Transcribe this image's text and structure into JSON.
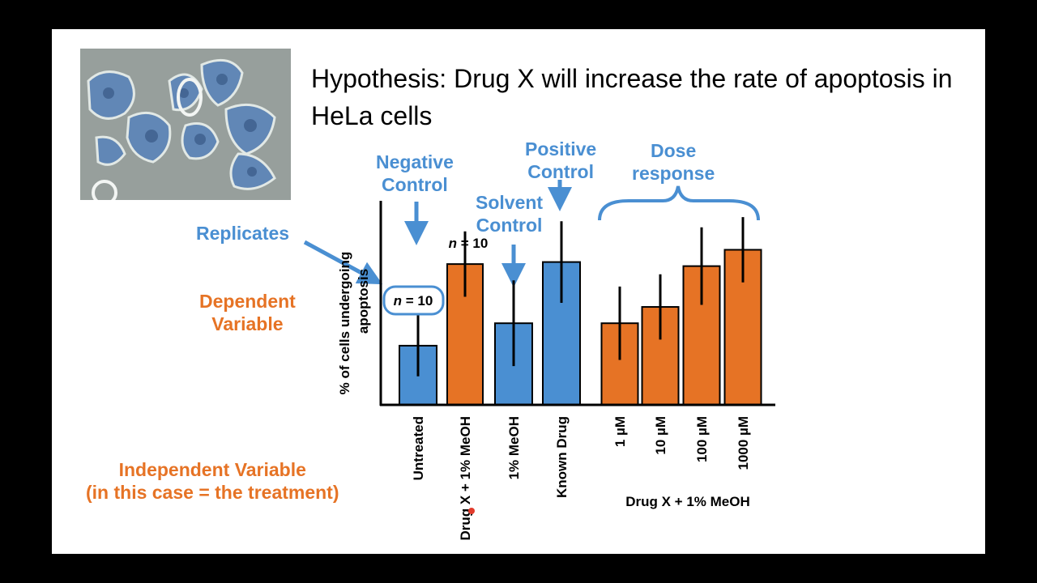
{
  "slide": {
    "hypothesis": "Hypothesis: Drug X will increase the rate of apoptosis in HeLa cells",
    "photo_description_icon": "hela-cells-micrograph"
  },
  "annotations": {
    "negative_control_1": "Negative",
    "negative_control_2": "Control",
    "positive_control_1": "Positive",
    "positive_control_2": "Control",
    "solvent_control_1": "Solvent",
    "solvent_control_2": "Control",
    "dose_response_1": "Dose",
    "dose_response_2": "response",
    "replicates": "Replicates",
    "dependent_1": "Dependent",
    "dependent_2": "Variable",
    "independent_1": "Independent Variable",
    "independent_2": "(in this case = the treatment)"
  },
  "colors": {
    "blue": "#4a8fd2",
    "orange": "#e67325",
    "annotation_blue": "#4a8fd2",
    "annotation_orange": "#e67325"
  },
  "chart_data": {
    "type": "bar",
    "title": "",
    "ylabel_line1": "% of cells undergoing",
    "ylabel_line2": "apoptosis",
    "xlabel": "",
    "ylim": [
      0,
      100
    ],
    "categories": [
      "Untreated",
      "Drug X + 1% MeOH",
      "1% MeOH",
      "Known Drug",
      "1 µM",
      "10 µM",
      "100 µM",
      "1000 µM"
    ],
    "values": [
      29,
      69,
      40,
      70,
      40,
      48,
      68,
      76
    ],
    "errors": [
      15,
      16,
      21,
      20,
      18,
      16,
      19,
      16
    ],
    "bar_colors": [
      "#4a8fd2",
      "#e67325",
      "#4a8fd2",
      "#4a8fd2",
      "#e67325",
      "#e67325",
      "#e67325",
      "#e67325"
    ],
    "dose_group_label": "Drug X + 1% MeOH",
    "n_label_untreated": "n = 10",
    "n_label_drug": "n = 10",
    "n_italic": "n",
    "n_rest": " = 10"
  }
}
